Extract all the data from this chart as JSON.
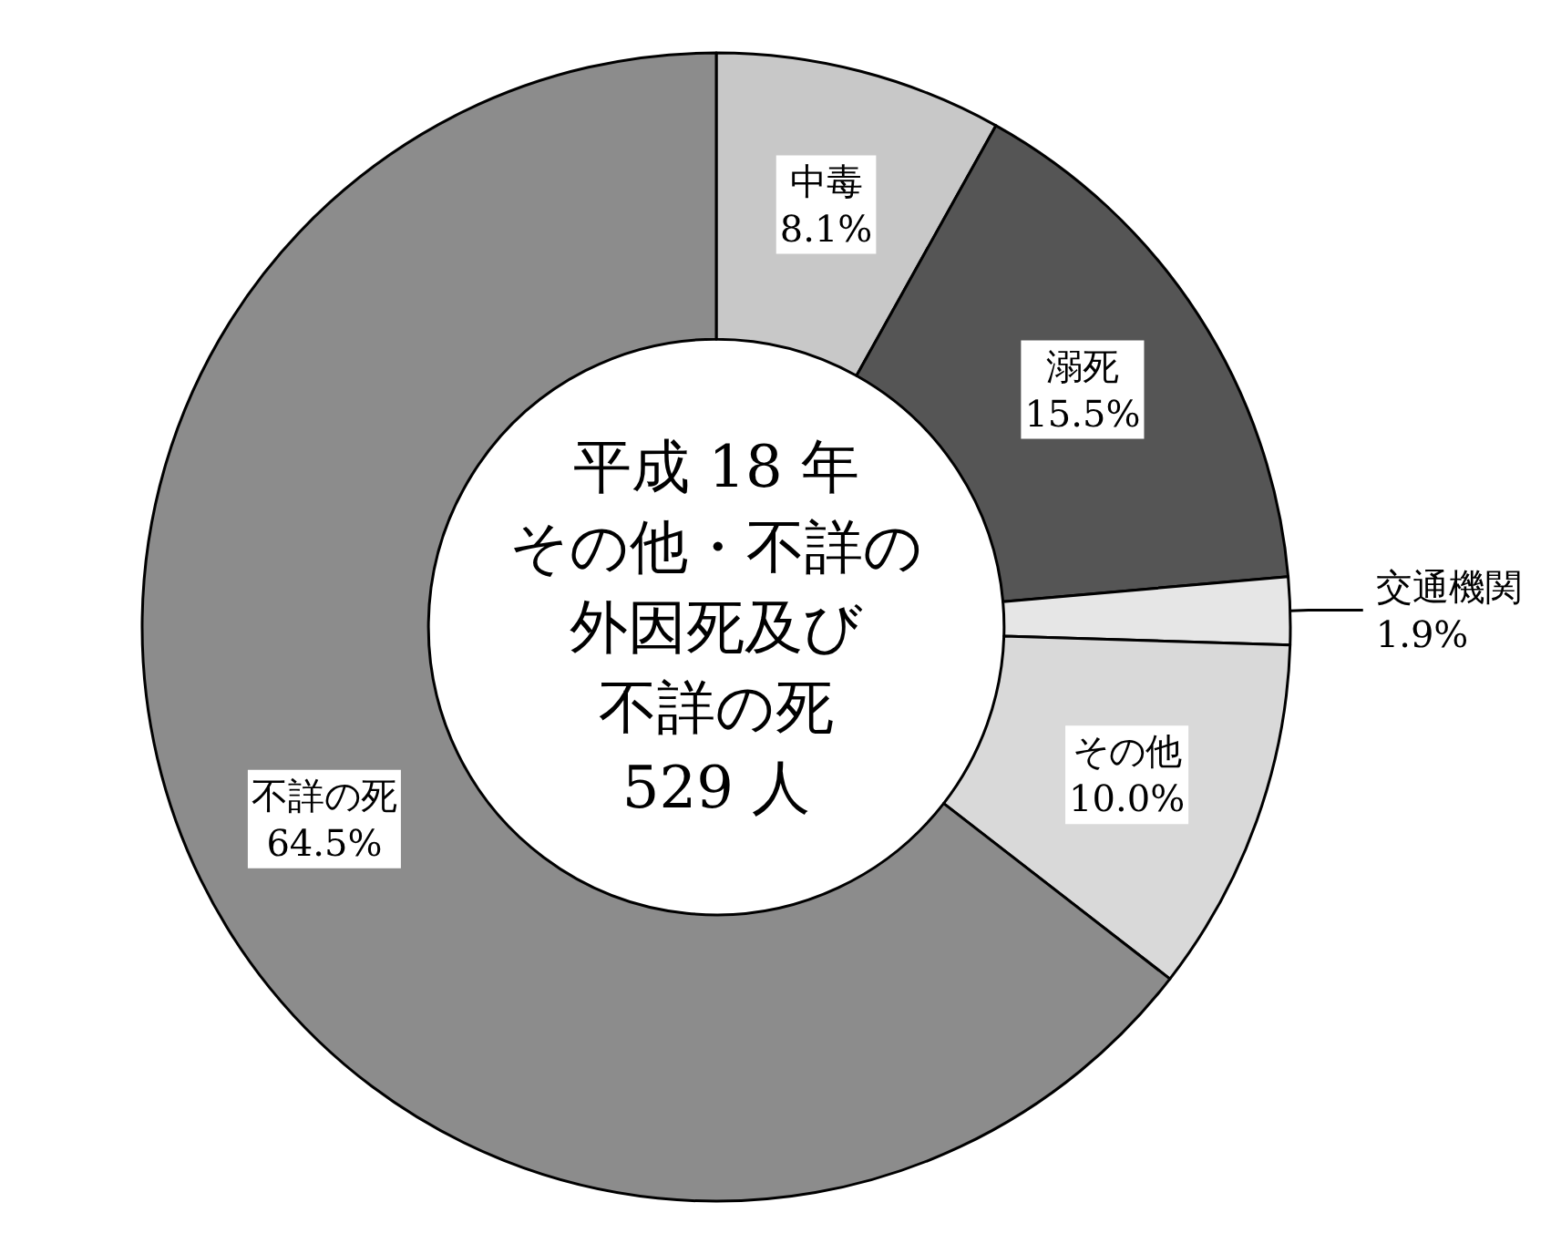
{
  "chart_data": {
    "type": "donut",
    "title": "平成 18 年",
    "annotations": [
      "その他・不詳の",
      "外因死及び",
      "不詳の死",
      "529 人"
    ],
    "categories": [
      "中毒",
      "溺死",
      "交通機関",
      "その他",
      "不詳の死"
    ],
    "values": [
      8.1,
      15.5,
      1.9,
      10.0,
      64.5
    ],
    "value_labels": [
      "8.1%",
      "15.5%",
      "1.9%",
      "10.0%",
      "64.5%"
    ],
    "colors": [
      "#c8c8c8",
      "#555555",
      "#e6e6e6",
      "#d9d9d9",
      "#8c8c8c"
    ],
    "legend": false
  }
}
